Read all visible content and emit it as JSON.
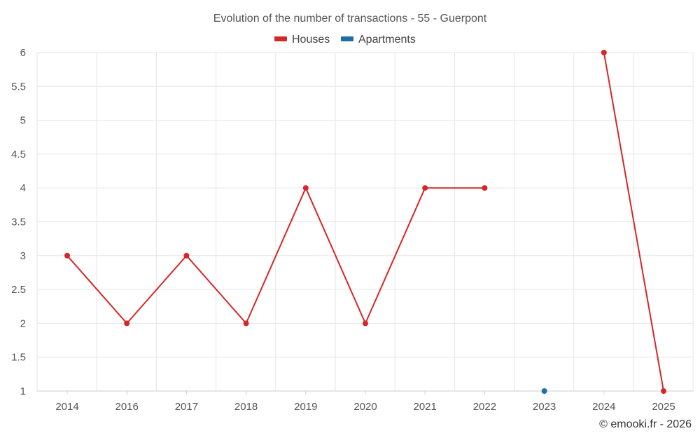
{
  "chart_data": {
    "type": "line",
    "title": "Evolution of the number of transactions - 55 - Guerpont",
    "categories": [
      "2014",
      "2016",
      "2017",
      "2018",
      "2019",
      "2020",
      "2021",
      "2022",
      "2023",
      "2024",
      "2025"
    ],
    "series": [
      {
        "name": "Houses",
        "color": "#d62728",
        "values": [
          3,
          2,
          3,
          2,
          4,
          2,
          4,
          4,
          null,
          6,
          1
        ]
      },
      {
        "name": "Apartments",
        "color": "#1f6fa5",
        "values": [
          null,
          null,
          null,
          null,
          null,
          null,
          null,
          null,
          1,
          null,
          null
        ]
      }
    ],
    "ylim": [
      1,
      6
    ],
    "yticks": [
      "1",
      "1.5",
      "2",
      "2.5",
      "3",
      "3.5",
      "4",
      "4.5",
      "5",
      "5.5",
      "6"
    ],
    "xlabel": "",
    "ylabel": "",
    "grid": true,
    "legend_position": "top-center"
  },
  "credit": "© emooki.fr - 2026"
}
